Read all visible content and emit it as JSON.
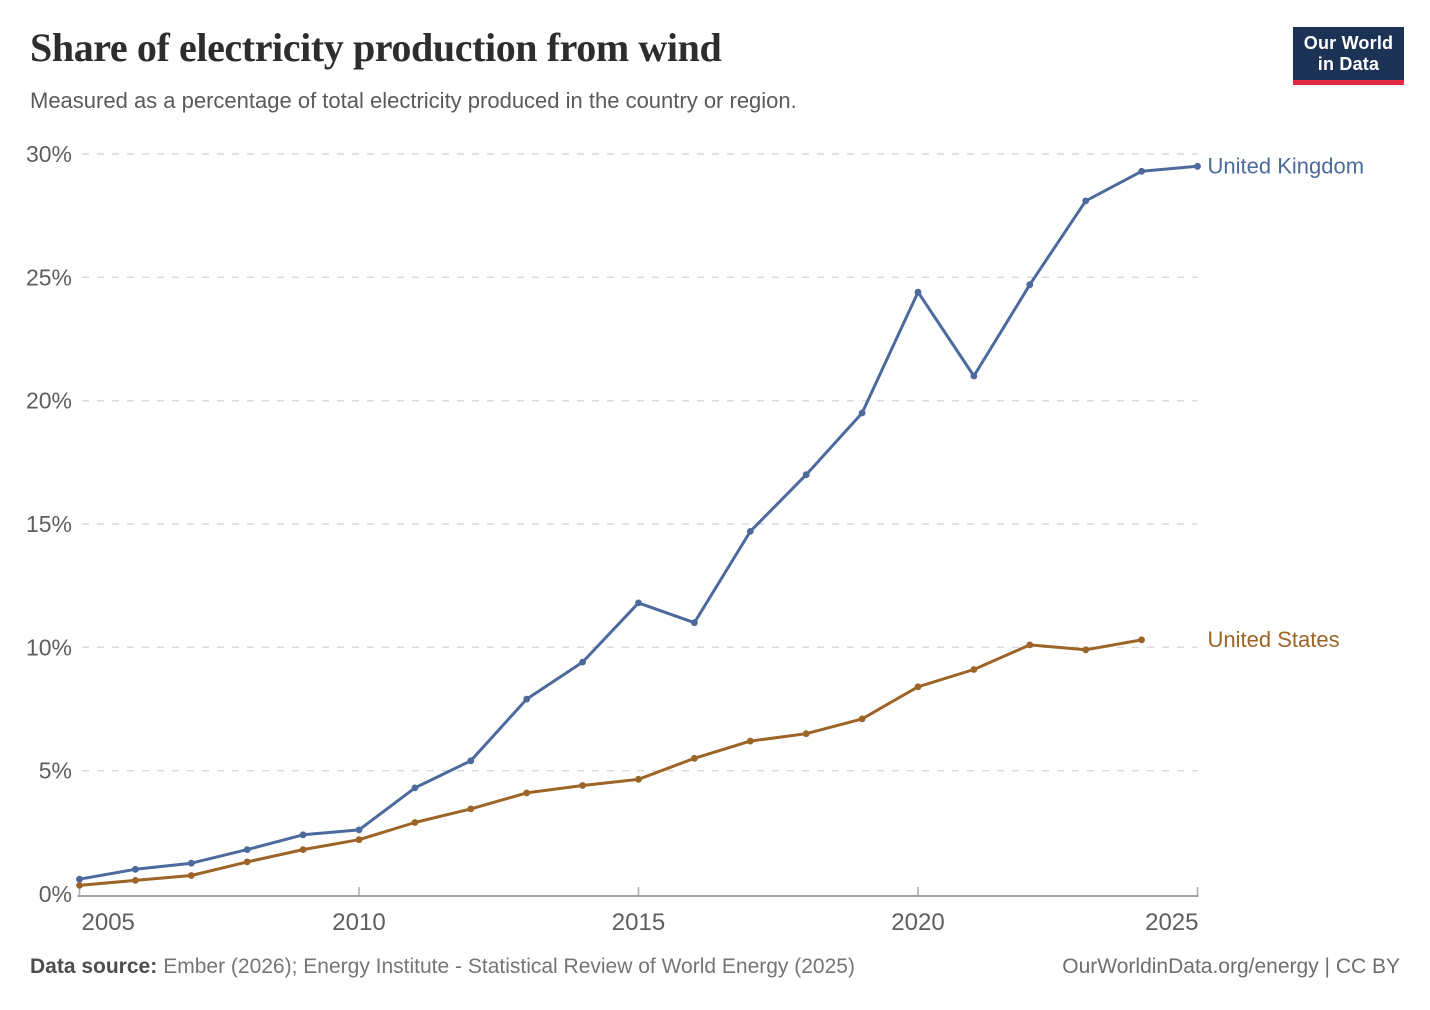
{
  "logo": {
    "line1": "Our World",
    "line2": "in Data",
    "bg_color": "#1d3356",
    "stripe_color": "#e02b43"
  },
  "footer": {
    "source_label": "Data source:",
    "source_text": "Ember (2026); Energy Institute - Statistical Review of World Energy (2025)",
    "link": "OurWorldinData.org/energy | CC BY"
  },
  "chart_data": {
    "type": "line",
    "title": "Share of electricity production from wind",
    "subtitle": "Measured as a percentage of total electricity produced in the country or region.",
    "xlabel": "",
    "ylabel": "",
    "xlim": [
      2005,
      2025
    ],
    "ylim": [
      0,
      30
    ],
    "x_ticks": [
      2005,
      2010,
      2015,
      2020,
      2025
    ],
    "y_ticks": [
      0,
      5,
      10,
      15,
      20,
      25,
      30
    ],
    "y_tick_suffix": "%",
    "grid": "horizontal-dashed",
    "legend_position": "end-of-line-labels-right",
    "series": [
      {
        "name": "United Kingdom",
        "color": "#4C6A9C",
        "years": [
          2005,
          2006,
          2007,
          2008,
          2009,
          2010,
          2011,
          2012,
          2013,
          2014,
          2015,
          2016,
          2017,
          2018,
          2019,
          2020,
          2021,
          2022,
          2023,
          2024,
          2025
        ],
        "values": [
          0.6,
          1.0,
          1.25,
          1.8,
          2.4,
          2.6,
          4.3,
          5.4,
          7.9,
          9.4,
          11.8,
          11.0,
          14.7,
          17.0,
          19.5,
          24.4,
          21.0,
          24.7,
          28.1,
          29.3,
          29.5
        ]
      },
      {
        "name": "United States",
        "color": "#9D6428",
        "years": [
          2005,
          2006,
          2007,
          2008,
          2009,
          2010,
          2011,
          2012,
          2013,
          2014,
          2015,
          2016,
          2017,
          2018,
          2019,
          2020,
          2021,
          2022,
          2023,
          2024
        ],
        "values": [
          0.35,
          0.55,
          0.75,
          1.3,
          1.8,
          2.2,
          2.9,
          3.45,
          4.1,
          4.4,
          4.65,
          5.5,
          6.2,
          6.5,
          7.1,
          8.4,
          9.1,
          10.1,
          9.9,
          10.3
        ]
      }
    ]
  }
}
